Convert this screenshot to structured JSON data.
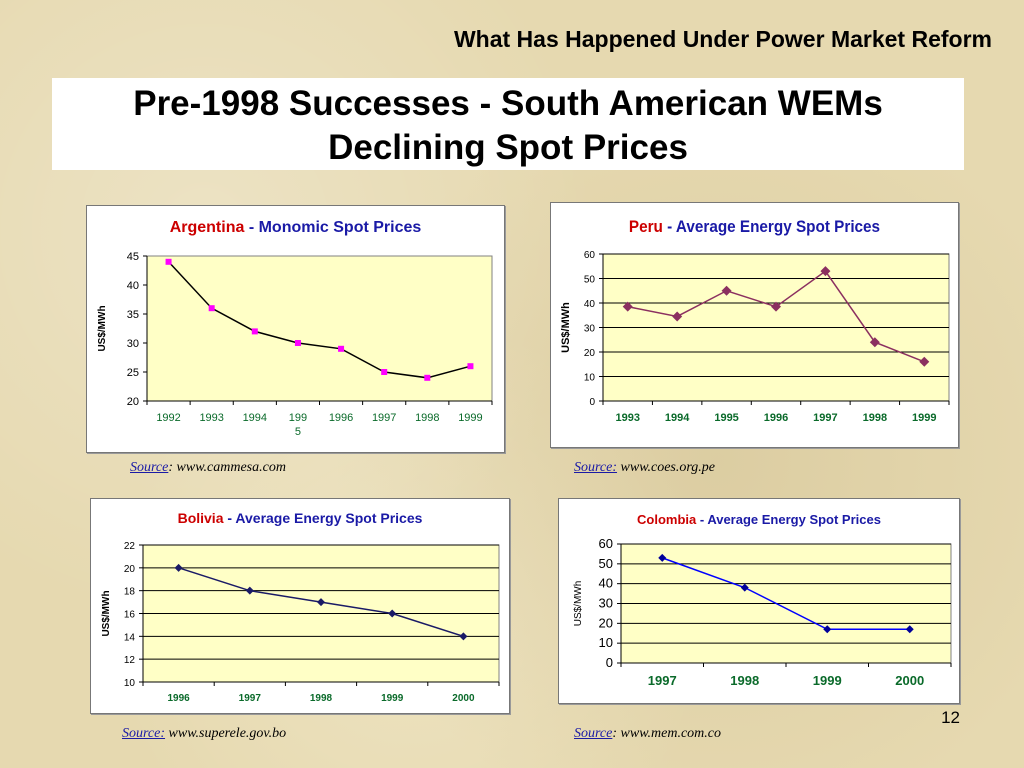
{
  "header": {
    "text": "What Has Happened Under Power Market Reform"
  },
  "title": {
    "line1": "Pre-1998 Successes - South American WEMs",
    "line2": "Declining Spot Prices"
  },
  "page_number": "12",
  "colors": {
    "plot_bg": "#ffffc6",
    "title_red": "#cc0000",
    "title_blue": "#1a1aa6",
    "tick_green": "#0a6a2a"
  },
  "chart_data": [
    {
      "id": "argentina",
      "type": "line",
      "title_country": "Argentina",
      "title_rest": " - Monomic Spot Prices",
      "ylabel": "US$/MWh",
      "xlabel": "",
      "categories": [
        "1992",
        "1993",
        "1994",
        "1995",
        "1996",
        "1997",
        "1998",
        "1999"
      ],
      "category_labels": [
        "1992",
        "1993",
        "1994",
        "199\n5",
        "1996",
        "1997",
        "1998",
        "1999"
      ],
      "series": [
        {
          "values": [
            44,
            36,
            32,
            30,
            29,
            25,
            24,
            26
          ]
        }
      ],
      "ylim": [
        20,
        45
      ],
      "yticks": [
        20,
        25,
        30,
        35,
        40,
        45
      ],
      "grid": false,
      "line_color": "#000000",
      "marker_color": "#ff00ff"
    },
    {
      "id": "peru",
      "type": "line",
      "title_country": "Peru",
      "title_rest": " - Average Energy Spot Prices",
      "ylabel": "US$/MWh",
      "xlabel": "",
      "categories": [
        "1993",
        "1994",
        "1995",
        "1996",
        "1997",
        "1998",
        "1999"
      ],
      "series": [
        {
          "values": [
            38.5,
            34.5,
            45,
            38.5,
            53,
            24,
            16
          ]
        }
      ],
      "ylim": [
        0,
        60
      ],
      "yticks": [
        0,
        10,
        20,
        30,
        40,
        50,
        60
      ],
      "grid": true,
      "line_color": "#8b3060",
      "marker_color": "#8b3060"
    },
    {
      "id": "bolivia",
      "type": "line",
      "title_country": "Bolivia",
      "title_rest": " - Average  Energy Spot Prices",
      "ylabel": "US$/MWh",
      "xlabel": "",
      "categories": [
        "1996",
        "1997",
        "1998",
        "1999",
        "2000"
      ],
      "series": [
        {
          "values": [
            20,
            18,
            17,
            16,
            14
          ]
        }
      ],
      "ylim": [
        10,
        22
      ],
      "yticks": [
        10,
        12,
        14,
        16,
        18,
        20,
        22
      ],
      "grid": true,
      "line_color": "#1a1a66",
      "marker_color": "#1a1a66"
    },
    {
      "id": "colombia",
      "type": "line",
      "title_country": "Colombia",
      "title_rest": " - Average Energy Spot Prices",
      "ylabel": "US$/MWh",
      "xlabel": "",
      "categories": [
        "1997",
        "1998",
        "1999",
        "2000"
      ],
      "series": [
        {
          "values": [
            53,
            38,
            17,
            17
          ]
        }
      ],
      "ylim": [
        0,
        60
      ],
      "yticks": [
        0,
        10,
        20,
        30,
        40,
        50,
        60
      ],
      "grid": true,
      "line_color": "#0000ff",
      "marker_color": "#000099"
    }
  ],
  "sources": [
    {
      "label": "Source",
      "sep": ": ",
      "url": "www.cammesa.com"
    },
    {
      "label": "Source:",
      "sep": " ",
      "url": "www.coes.org.pe"
    },
    {
      "label": "Source:",
      "sep": " ",
      "url": "www.superele.gov.bo"
    },
    {
      "label": "Source",
      "sep": ": ",
      "url": "www.mem.com.co"
    }
  ]
}
